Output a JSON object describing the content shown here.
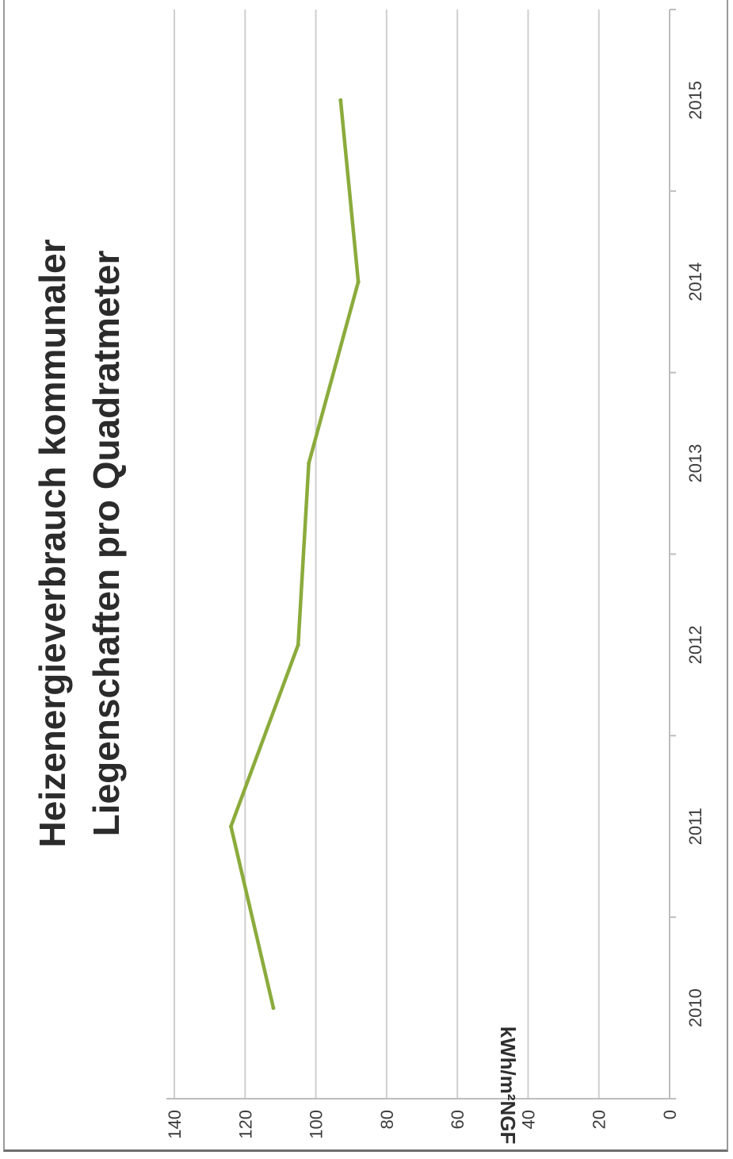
{
  "chart_data": {
    "type": "line",
    "title_lines": [
      "Heizenergieverbrauch kommunaler",
      "Liegenschaften pro Quadratmeter"
    ],
    "ylabel": "kWh/m²NGF",
    "xlabel": "",
    "categories": [
      "2010",
      "2011",
      "2012",
      "2013",
      "2014",
      "2015"
    ],
    "series": [
      {
        "values": [
          112,
          124,
          105,
          102,
          88,
          93
        ]
      }
    ],
    "ylim": [
      0,
      140
    ],
    "yticks": [
      0,
      20,
      40,
      60,
      80,
      100,
      120,
      140
    ],
    "grid": true,
    "orientation": "rotated 90° counter-clockwise",
    "line_color": "#8bab3c"
  }
}
